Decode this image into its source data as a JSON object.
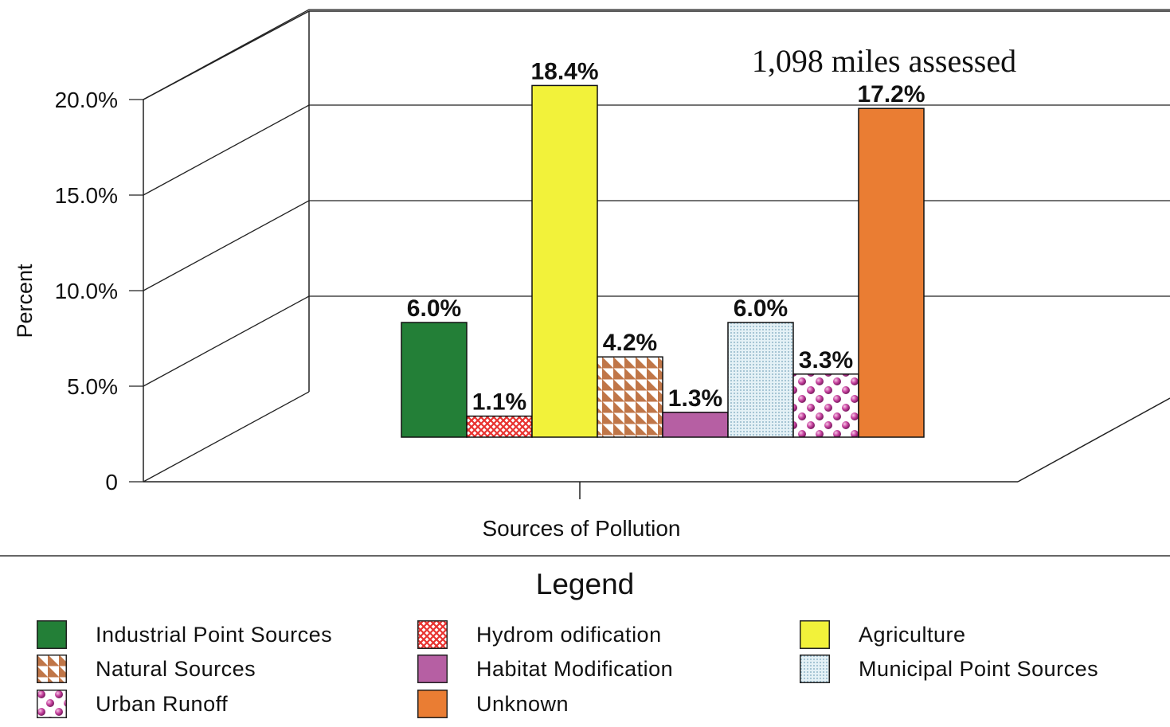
{
  "chart_data": {
    "type": "bar",
    "annotation": "1,098 miles assessed",
    "xlabel": "Sources of Pollution",
    "ylabel": "Percent",
    "y_ticks": [
      "0",
      "5.0%",
      "10.0%",
      "15.0%",
      "20.0%"
    ],
    "ylim": [
      0,
      20
    ],
    "grid": true,
    "legend_title": "Legend",
    "legend_position": "bottom",
    "series": [
      {
        "name": "Industrial Point Sources",
        "value": 6.0,
        "label": "6.0%",
        "color": "#237f37",
        "pattern": "solid"
      },
      {
        "name": "Hydromodification",
        "value": 1.1,
        "label": "1.1%",
        "color": "#e8322f",
        "pattern": "crosshatch"
      },
      {
        "name": "Agriculture",
        "value": 18.4,
        "label": "18.4%",
        "color": "#f2f23a",
        "pattern": "solid"
      },
      {
        "name": "Natural Sources",
        "value": 4.2,
        "label": "4.2%",
        "color": "#c07648",
        "pattern": "triangles"
      },
      {
        "name": "Habitat Modification",
        "value": 1.3,
        "label": "1.3%",
        "color": "#b65fa3",
        "pattern": "solid"
      },
      {
        "name": "Municipal Point Sources",
        "value": 6.0,
        "label": "6.0%",
        "color": "#c9e3ee",
        "pattern": "dots"
      },
      {
        "name": "Urban Runoff",
        "value": 3.3,
        "label": "3.3%",
        "color": "#c6419e",
        "pattern": "spheres"
      },
      {
        "name": "Unknown",
        "value": 17.2,
        "label": "17.2%",
        "color": "#ea7d33",
        "pattern": "solid"
      }
    ],
    "legend_order": [
      "Industrial Point Sources",
      "Hydromodification",
      "Agriculture",
      "Natural Sources",
      "Habitat Modification",
      "Municipal Point Sources",
      "Urban Runoff",
      "Unknown"
    ],
    "legend_labels": {
      "Industrial Point Sources": "Industrial Point Sources",
      "Hydromodification": "Hydrom odification",
      "Agriculture": "Agriculture",
      "Natural Sources": "Natural Sources",
      "Habitat Modification": "Habitat Modification",
      "Municipal Point Sources": "Municipal Point Sources",
      "Urban Runoff": "Urban Runoff",
      "Unknown": "Unknown"
    }
  }
}
